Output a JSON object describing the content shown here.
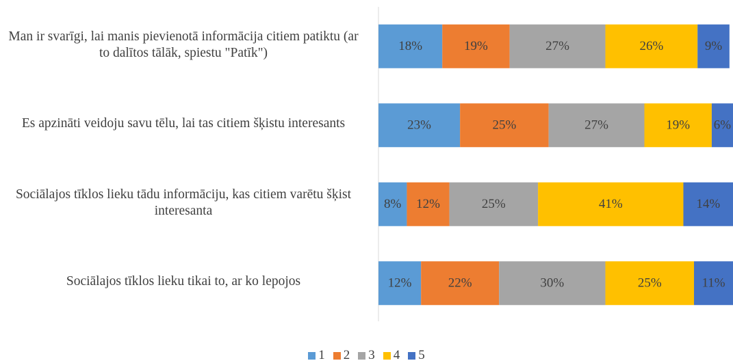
{
  "chart_data": {
    "type": "stacked-bar-horizontal",
    "categories": [
      "Man ir svarīgi, lai manis pievienotā informācija citiem patiktu (ar to dalītos tālāk, spiestu \"Patīk\")",
      "Es apzināti veidoju savu tēlu, lai tas citiem šķistu interesants",
      "Sociālajos tīklos lieku tādu informāciju, kas citiem varētu šķist interesanta",
      "Sociālajos tīklos lieku tikai to, ar ko lepojos"
    ],
    "xlim": [
      0,
      100
    ],
    "series": [
      {
        "name": "1",
        "color": "#5b9bd5",
        "values": [
          18,
          23,
          8,
          12
        ],
        "value_labels": [
          "18%",
          "23%",
          "8%",
          "12%"
        ]
      },
      {
        "name": "2",
        "color": "#ed7d31",
        "values": [
          19,
          25,
          12,
          22
        ],
        "value_labels": [
          "19%",
          "25%",
          "12%",
          "22%"
        ]
      },
      {
        "name": "3",
        "color": "#a5a5a5",
        "values": [
          27,
          27,
          25,
          30
        ],
        "value_labels": [
          "27%",
          "27%",
          "25%",
          "30%"
        ]
      },
      {
        "name": "4",
        "color": "#ffc000",
        "values": [
          26,
          19,
          41,
          25
        ],
        "value_labels": [
          "26%",
          "19%",
          "41%",
          "25%"
        ]
      },
      {
        "name": "5",
        "color": "#4472c4",
        "values": [
          9,
          6,
          14,
          11
        ],
        "value_labels": [
          "9%",
          "6%",
          "14%",
          "11%"
        ]
      }
    ]
  }
}
